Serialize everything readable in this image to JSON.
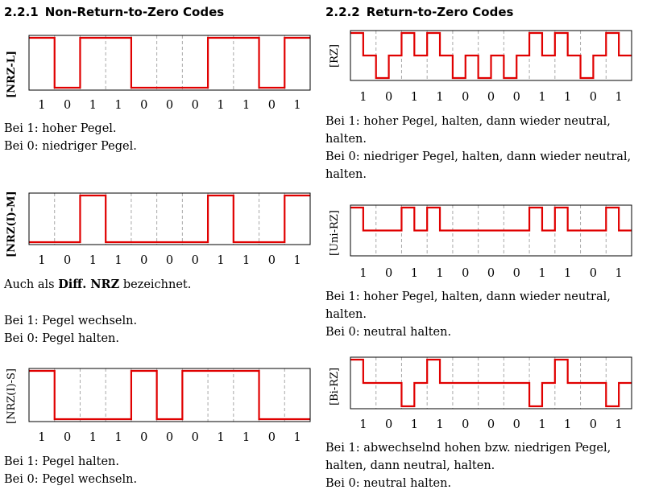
{
  "left": {
    "heading": {
      "number": "2.2.1",
      "title": "Non-Return-to-Zero Codes"
    },
    "nrzl": {
      "label": "NRZ-L",
      "bits": [
        "1",
        "0",
        "1",
        "1",
        "0",
        "0",
        "0",
        "1",
        "1",
        "0",
        "1"
      ],
      "desc": [
        "Bei 1: hoher Pegel.",
        "Bei 0: niedriger Pegel."
      ]
    },
    "nrzm": {
      "label": "NRZ(I)-M",
      "bits": [
        "1",
        "0",
        "1",
        "1",
        "0",
        "0",
        "0",
        "1",
        "1",
        "0",
        "1"
      ],
      "aka_prefix": "Auch als",
      "aka_term": "Diff. NRZ",
      "aka_suffix": "bezeichnet.",
      "desc": [
        "Bei 1: Pegel wechseln.",
        "Bei 0: Pegel halten."
      ]
    },
    "nrzs": {
      "label": "NRZ(I)-S",
      "bits": [
        "1",
        "0",
        "1",
        "1",
        "0",
        "0",
        "0",
        "1",
        "1",
        "0",
        "1"
      ],
      "desc": [
        "Bei 1: Pegel halten.",
        "Bei 0: Pegel wechseln."
      ]
    }
  },
  "right": {
    "heading": {
      "number": "2.2.2",
      "title": "Return-to-Zero Codes"
    },
    "rz": {
      "label": "RZ",
      "bits": [
        "1",
        "0",
        "1",
        "1",
        "0",
        "0",
        "0",
        "1",
        "1",
        "0",
        "1"
      ],
      "desc": [
        "Bei 1: hoher Pegel, halten, dann wieder neutral,",
        "halten.",
        "Bei 0: niedriger Pegel, halten, dann wieder neutral,",
        "halten."
      ]
    },
    "unirz": {
      "label": "Uni-RZ",
      "bits": [
        "1",
        "0",
        "1",
        "1",
        "0",
        "0",
        "0",
        "1",
        "1",
        "0",
        "1"
      ],
      "desc": [
        "Bei 1: hoher Pegel, halten, dann wieder neutral,",
        "halten.",
        "Bei 0: neutral halten."
      ]
    },
    "birz": {
      "label": "Bi-RZ",
      "bits": [
        "1",
        "0",
        "1",
        "1",
        "0",
        "0",
        "0",
        "1",
        "1",
        "0",
        "1"
      ],
      "desc": [
        "Bei 1: abwechselnd hohen bzw. niedrigen Pegel,",
        "halten, dann neutral, halten.",
        "Bei 0: neutral halten."
      ]
    }
  },
  "style": {
    "signal_color": "#e00000",
    "grid_color": "#a8a8a8",
    "frame_color": "#000000"
  }
}
